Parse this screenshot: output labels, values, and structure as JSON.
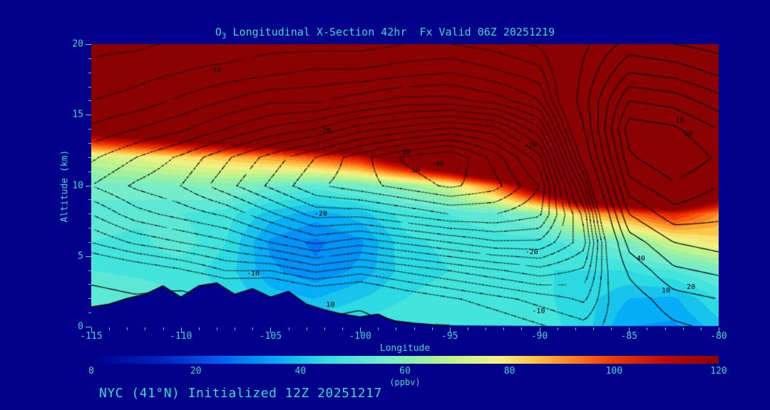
{
  "page": {
    "background": "#00008B",
    "accent": "#38d9cc",
    "contour_color": "#000000"
  },
  "header": {
    "title_o": "O",
    "title_sub": "3",
    "title_rest": " Longitudinal X-Section 42hr  Fx Valid 06Z 20251219"
  },
  "footer": {
    "text": "NYC (41°N) Initialized 12Z 20251217"
  },
  "chart_data": {
    "type": "heatmap",
    "title": "O3 Longitudinal X-Section 42hr Fx Valid 06Z 20251219",
    "xlabel": "Longitude",
    "ylabel": "Altitude (km)",
    "xlim": [
      -115,
      -80
    ],
    "ylim": [
      0,
      20
    ],
    "x_ticks": [
      -115,
      -110,
      -105,
      -100,
      -95,
      -90,
      -85,
      -80
    ],
    "y_ticks": [
      0,
      5,
      10,
      15,
      20
    ],
    "colorbar": {
      "label": "(ppbv)",
      "min": 0,
      "max": 120,
      "ticks": [
        0,
        20,
        40,
        60,
        80,
        100,
        120
      ]
    },
    "colormap_stops": [
      [
        0,
        "#00008B"
      ],
      [
        15,
        "#0028c8"
      ],
      [
        25,
        "#0060f0"
      ],
      [
        35,
        "#00a8f8"
      ],
      [
        45,
        "#30e0e0"
      ],
      [
        55,
        "#70ecd0"
      ],
      [
        62,
        "#90f0a8"
      ],
      [
        70,
        "#c8f488"
      ],
      [
        78,
        "#f8f080"
      ],
      [
        85,
        "#ffc040"
      ],
      [
        92,
        "#ff8020"
      ],
      [
        100,
        "#f03800"
      ],
      [
        110,
        "#c00800"
      ],
      [
        120,
        "#8b0000"
      ]
    ],
    "ozone": {
      "lons": [
        -115,
        -112.5,
        -110,
        -107.5,
        -105,
        -102.5,
        -100,
        -97.5,
        -95,
        -92.5,
        -90,
        -87.5,
        -85,
        -82.5,
        -80
      ],
      "alts_km": [
        0,
        2,
        4,
        6,
        8,
        10,
        12,
        14,
        16,
        18,
        20
      ],
      "values_ppbv": [
        [
          52,
          54,
          50,
          50,
          52,
          56,
          70,
          130,
          200,
          260,
          300
        ],
        [
          50,
          53,
          49,
          49,
          51,
          57,
          75,
          140,
          210,
          265,
          300
        ],
        [
          46,
          50,
          48,
          52,
          50,
          58,
          80,
          150,
          215,
          270,
          300
        ],
        [
          44,
          46,
          44,
          46,
          48,
          60,
          85,
          160,
          225,
          275,
          300
        ],
        [
          44,
          40,
          35,
          33,
          40,
          55,
          90,
          170,
          235,
          280,
          300
        ],
        [
          46,
          38,
          31,
          29,
          36,
          52,
          98,
          180,
          245,
          285,
          300
        ],
        [
          48,
          42,
          35,
          33,
          40,
          56,
          108,
          195,
          255,
          290,
          300
        ],
        [
          50,
          46,
          44,
          45,
          48,
          62,
          135,
          215,
          265,
          295,
          300
        ],
        [
          50,
          48,
          46,
          47,
          50,
          72,
          165,
          235,
          275,
          300,
          300
        ],
        [
          50,
          48,
          47,
          48,
          53,
          95,
          195,
          255,
          285,
          300,
          300
        ],
        [
          48,
          47,
          46,
          48,
          60,
          135,
          225,
          270,
          295,
          300,
          300
        ],
        [
          44,
          44,
          46,
          52,
          85,
          175,
          245,
          285,
          300,
          300,
          300
        ],
        [
          34,
          38,
          46,
          58,
          95,
          185,
          255,
          292,
          300,
          300,
          300
        ],
        [
          33,
          37,
          50,
          72,
          105,
          195,
          260,
          295,
          300,
          300,
          300
        ],
        [
          40,
          46,
          56,
          80,
          90,
          150,
          235,
          282,
          300,
          300,
          300
        ]
      ]
    },
    "contour_field": {
      "lons": [
        -115,
        -112.5,
        -110,
        -107.5,
        -105,
        -102.5,
        -100,
        -97.5,
        -95,
        -92.5,
        -90,
        -87.5,
        -85,
        -82.5,
        -80
      ],
      "alts_km": [
        0,
        2,
        4,
        6,
        8,
        10,
        12,
        14,
        16,
        18,
        20
      ],
      "neg_levels": [
        -40,
        -37.5,
        -35,
        -32.5,
        -30,
        -27.5,
        -25,
        -22.5,
        -20,
        -17.5,
        -15,
        -12.5,
        -10,
        -7.5,
        -5,
        -2.5
      ],
      "pos_levels": [
        5,
        10,
        15,
        20,
        25,
        30,
        35,
        40
      ],
      "values": [
        [
          12,
          8,
          2,
          -5,
          -10,
          -15,
          -12,
          -8,
          -5,
          -3,
          -2
        ],
        [
          10,
          6,
          0,
          -8,
          -14,
          -18,
          -15,
          -10,
          -6,
          -4,
          -2
        ],
        [
          12,
          8,
          -2,
          -10,
          -16,
          -20,
          -18,
          -12,
          -8,
          -5,
          -3
        ],
        [
          8,
          4,
          -5,
          -12,
          -18,
          -24,
          -22,
          -15,
          -10,
          -6,
          -3
        ],
        [
          10,
          5,
          -5,
          -15,
          -22,
          -28,
          -26,
          -18,
          -12,
          -7,
          -4
        ],
        [
          6,
          2,
          -8,
          -18,
          -26,
          -32,
          -30,
          -20,
          -12,
          -8,
          -4
        ],
        [
          8,
          3,
          -6,
          -16,
          -26,
          -34,
          -34,
          -24,
          -14,
          -8,
          -4
        ],
        [
          4,
          0,
          -8,
          -18,
          -28,
          -36,
          -38,
          -26,
          -16,
          -9,
          -5
        ],
        [
          2,
          -2,
          -10,
          -20,
          -30,
          -38,
          -40,
          -28,
          -16,
          -10,
          -5
        ],
        [
          0,
          -4,
          -12,
          -22,
          -30,
          -36,
          -34,
          -26,
          -14,
          -8,
          -4
        ],
        [
          -2,
          -6,
          -14,
          -22,
          -28,
          -30,
          -26,
          -18,
          -10,
          -6,
          -2
        ],
        [
          -4,
          -8,
          -12,
          -16,
          -14,
          -8,
          0,
          5,
          8,
          6,
          4
        ],
        [
          0,
          2,
          6,
          12,
          20,
          28,
          34,
          38,
          30,
          20,
          12
        ],
        [
          4,
          8,
          14,
          20,
          28,
          34,
          40,
          36,
          28,
          18,
          10
        ],
        [
          6,
          10,
          16,
          22,
          26,
          30,
          34,
          30,
          22,
          14,
          8
        ]
      ]
    },
    "terrain": {
      "lons": [
        -115,
        -114,
        -113,
        -112,
        -111,
        -110,
        -109,
        -108,
        -107,
        -106,
        -105,
        -104,
        -103,
        -102,
        -101,
        -100,
        -99,
        -98.5,
        -98,
        -97,
        -96,
        -95,
        -90,
        -85,
        -80
      ],
      "alts_km": [
        1.4,
        1.6,
        2.0,
        2.3,
        2.9,
        2.1,
        2.9,
        3.1,
        2.3,
        2.7,
        2.1,
        2.5,
        1.6,
        1.2,
        0.9,
        0.7,
        0.9,
        0.6,
        0.4,
        0.25,
        0.15,
        0.1,
        0.05,
        0.05,
        0.05
      ]
    },
    "contour_labels": [
      {
        "text": "-10",
        "fx": 0.197,
        "fy": 0.095
      },
      {
        "text": "-20",
        "fx": 0.372,
        "fy": 0.31
      },
      {
        "text": "-30",
        "fx": 0.498,
        "fy": 0.385
      },
      {
        "text": "30",
        "fx": 0.517,
        "fy": 0.448
      },
      {
        "text": "-40",
        "fx": 0.552,
        "fy": 0.425
      },
      {
        "text": "-20",
        "fx": 0.366,
        "fy": 0.6
      },
      {
        "text": "-20",
        "fx": 0.702,
        "fy": 0.737
      },
      {
        "text": "-10",
        "fx": 0.258,
        "fy": 0.812
      },
      {
        "text": "-10",
        "fx": 0.713,
        "fy": 0.945
      },
      {
        "text": "10",
        "fx": 0.381,
        "fy": 0.923
      },
      {
        "text": "10",
        "fx": 0.916,
        "fy": 0.873
      },
      {
        "text": "20",
        "fx": 0.956,
        "fy": 0.86
      },
      {
        "text": "40",
        "fx": 0.876,
        "fy": 0.758
      },
      {
        "text": "10",
        "fx": 0.938,
        "fy": 0.272
      },
      {
        "text": "20",
        "fx": 0.952,
        "fy": 0.32
      },
      {
        "text": "-20",
        "fx": 0.7,
        "fy": 0.36
      }
    ]
  }
}
